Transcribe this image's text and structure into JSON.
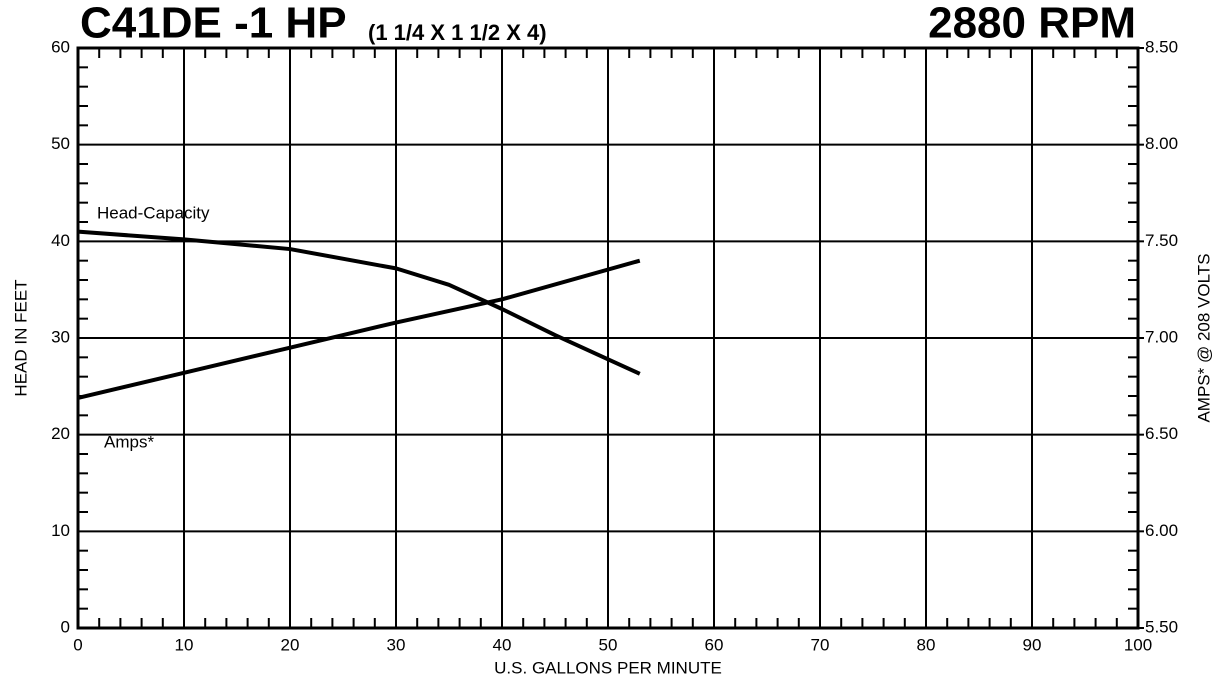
{
  "chart_data": {
    "type": "line",
    "title": "C41DE -1 HP",
    "subtitle": "(1 1/4 X 1 1/2 X 4)",
    "speed": "2880 RPM",
    "xlabel": "U.S. GALLONS PER MINUTE",
    "ylabel": "HEAD IN FEET",
    "y2label": "AMPS* @ 208 VOLTS",
    "xlim": [
      0,
      100
    ],
    "xticks": [
      0,
      10,
      20,
      30,
      40,
      50,
      60,
      70,
      80,
      90,
      100
    ],
    "ylim": [
      0,
      60
    ],
    "yticks": [
      0,
      10,
      20,
      30,
      40,
      50,
      60
    ],
    "y2lim": [
      5.5,
      8.5
    ],
    "y2ticks": [
      {
        "value": 5.5,
        "label": "5.50"
      },
      {
        "value": 6,
        "label": "6.00"
      },
      {
        "value": 6.5,
        "label": "6.50"
      },
      {
        "value": 7,
        "label": "7.00"
      },
      {
        "value": 7.5,
        "label": "7.50"
      },
      {
        "value": 8,
        "label": "8.00"
      },
      {
        "value": 8.5,
        "label": "8.50"
      }
    ],
    "grid": true,
    "series": [
      {
        "name": "Head-Capacity",
        "color": "#000000",
        "x": [
          0,
          10,
          20,
          30,
          35,
          40,
          45,
          50,
          53
        ],
        "values": [
          41,
          40.2,
          39.2,
          37.2,
          35.5,
          33,
          30.3,
          27.8,
          26.3
        ]
      },
      {
        "name": "Amps*",
        "color": "#000000",
        "axis": "y2",
        "x": [
          0,
          10,
          20,
          30,
          40,
          53
        ],
        "values": [
          6.69,
          6.82,
          6.95,
          7.08,
          7.2,
          7.4
        ]
      }
    ]
  }
}
